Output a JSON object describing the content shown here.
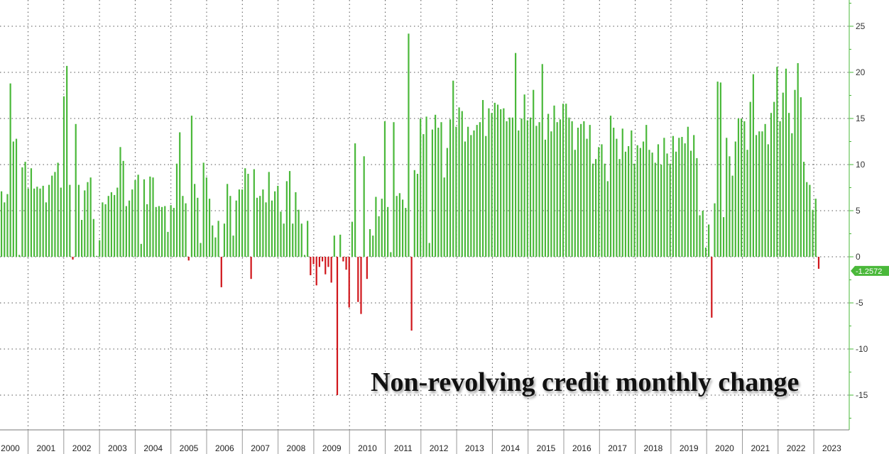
{
  "chart_data": {
    "type": "bar",
    "title": "Non-revolving credit monthly change",
    "xlabel": "",
    "ylabel": "",
    "ylim": [
      -19,
      28
    ],
    "y_ticks": [
      25,
      20,
      15,
      10,
      5,
      0,
      -5,
      -10,
      -15
    ],
    "y_tick_labels": [
      "25",
      "20",
      "15",
      "10",
      "5",
      "0",
      "-5",
      "-10",
      "-15"
    ],
    "x_tick_labels": [
      "2000",
      "2001",
      "2002",
      "2003",
      "2004",
      "2005",
      "2006",
      "2007",
      "2008",
      "2009",
      "2010",
      "2011",
      "2012",
      "2013",
      "2014",
      "2015",
      "2016",
      "2017",
      "2018",
      "2019",
      "2020",
      "2021",
      "2022",
      "2023"
    ],
    "grid": true,
    "y_axis_side": "right",
    "positive_color": "#4ab83a",
    "negative_color": "#d0161b",
    "axis_color": "#4ab83a",
    "last_value_label": "-1.2572",
    "series": [
      {
        "values": [
          7.1,
          5.9,
          6.8,
          18.8,
          12.5,
          12.8,
          0.2,
          9.7,
          10.3,
          7.4,
          9.6,
          7.4,
          7.6,
          7.4,
          7.7,
          5.9,
          7.8,
          8.8,
          9.2,
          10.2,
          7.5,
          17.4,
          20.7,
          7.8,
          -0.3,
          14.4,
          7.8,
          4.0,
          7.2,
          8.1,
          8.6,
          4.1,
          0.1,
          1.8,
          5.9,
          5.7,
          6.6,
          7.0,
          6.7,
          7.5,
          11.9,
          10.4,
          5.5,
          6.1,
          7.3,
          8.3,
          8.9,
          1.4,
          8.4,
          5.7,
          8.7,
          8.6,
          5.4,
          5.5,
          5.4,
          5.5,
          2.7,
          5.6,
          5.3,
          10.1,
          13.5,
          6.6,
          5.8,
          -0.4,
          15.3,
          7.9,
          6.4,
          1.5,
          10.2,
          8.6,
          6.3,
          3.4,
          2.1,
          3.9,
          -3.3,
          3.6,
          7.9,
          6.6,
          2.3,
          6.1,
          7.3,
          7.3,
          9.6,
          9.0,
          -2.4,
          9.5,
          6.4,
          6.6,
          7.3,
          5.9,
          9.2,
          6.1,
          7.1,
          7.7,
          4.9,
          3.6,
          8.2,
          9.3,
          3.6,
          7.0,
          5.1,
          3.6,
          0.2,
          3.9,
          -2.0,
          -0.8,
          -3.1,
          -1.1,
          -0.5,
          -1.9,
          -1.1,
          -2.8,
          2.3,
          -15.0,
          2.4,
          -0.5,
          -1.4,
          -5.5,
          3.8,
          12.3,
          -4.9,
          -6.2,
          10.9,
          -2.4,
          3.0,
          2.3,
          6.5,
          4.4,
          6.3,
          14.7,
          5.4,
          0.5,
          14.6,
          6.6,
          6.9,
          6.2,
          5.3,
          24.2,
          -8.0,
          9.4,
          9.0,
          15.0,
          13.3,
          15.2,
          1.5,
          13.8,
          15.4,
          14.0,
          14.6,
          8.6,
          11.8,
          14.9,
          19.1,
          14.1,
          16.2,
          15.8,
          12.5,
          14.1,
          13.2,
          13.7,
          14.3,
          14.6,
          17.0,
          13.1,
          16.1,
          15.6,
          16.7,
          16.5,
          16.0,
          16.1,
          14.7,
          15.1,
          15.1,
          22.1,
          13.7,
          15.0,
          17.6,
          14.8,
          15.1,
          18.1,
          14.2,
          14.6,
          20.9,
          12.7,
          15.5,
          13.6,
          16.4,
          14.6,
          14.9,
          16.6,
          16.6,
          15.1,
          14.7,
          11.6,
          14.0,
          14.4,
          14.7,
          12.8,
          14.3,
          10.1,
          10.6,
          11.9,
          12.2,
          10.1,
          8.2,
          15.3,
          14.0,
          12.8,
          10.6,
          13.9,
          11.4,
          12.0,
          13.7,
          10.1,
          12.1,
          11.8,
          12.5,
          14.3,
          11.6,
          11.3,
          10.2,
          12.2,
          10.0,
          12.9,
          11.2,
          10.1,
          13.1,
          11.4,
          12.9,
          13.0,
          12.3,
          14.1,
          11.5,
          13.2,
          10.7,
          4.5,
          5.0,
          1.0,
          3.5,
          -6.6,
          5.8,
          19.0,
          18.9,
          4.3,
          12.9,
          10.9,
          8.8,
          12.5,
          15.0,
          15.0,
          14.7,
          11.6,
          16.8,
          19.8,
          13.2,
          13.6,
          13.6,
          14.4,
          12.2,
          15.6,
          16.8,
          20.6,
          14.7,
          17.8,
          20.4,
          15.6,
          13.4,
          18.1,
          21.0,
          17.3,
          10.3,
          8.1,
          7.8,
          5.1,
          6.3,
          -1.3
        ]
      }
    ]
  }
}
